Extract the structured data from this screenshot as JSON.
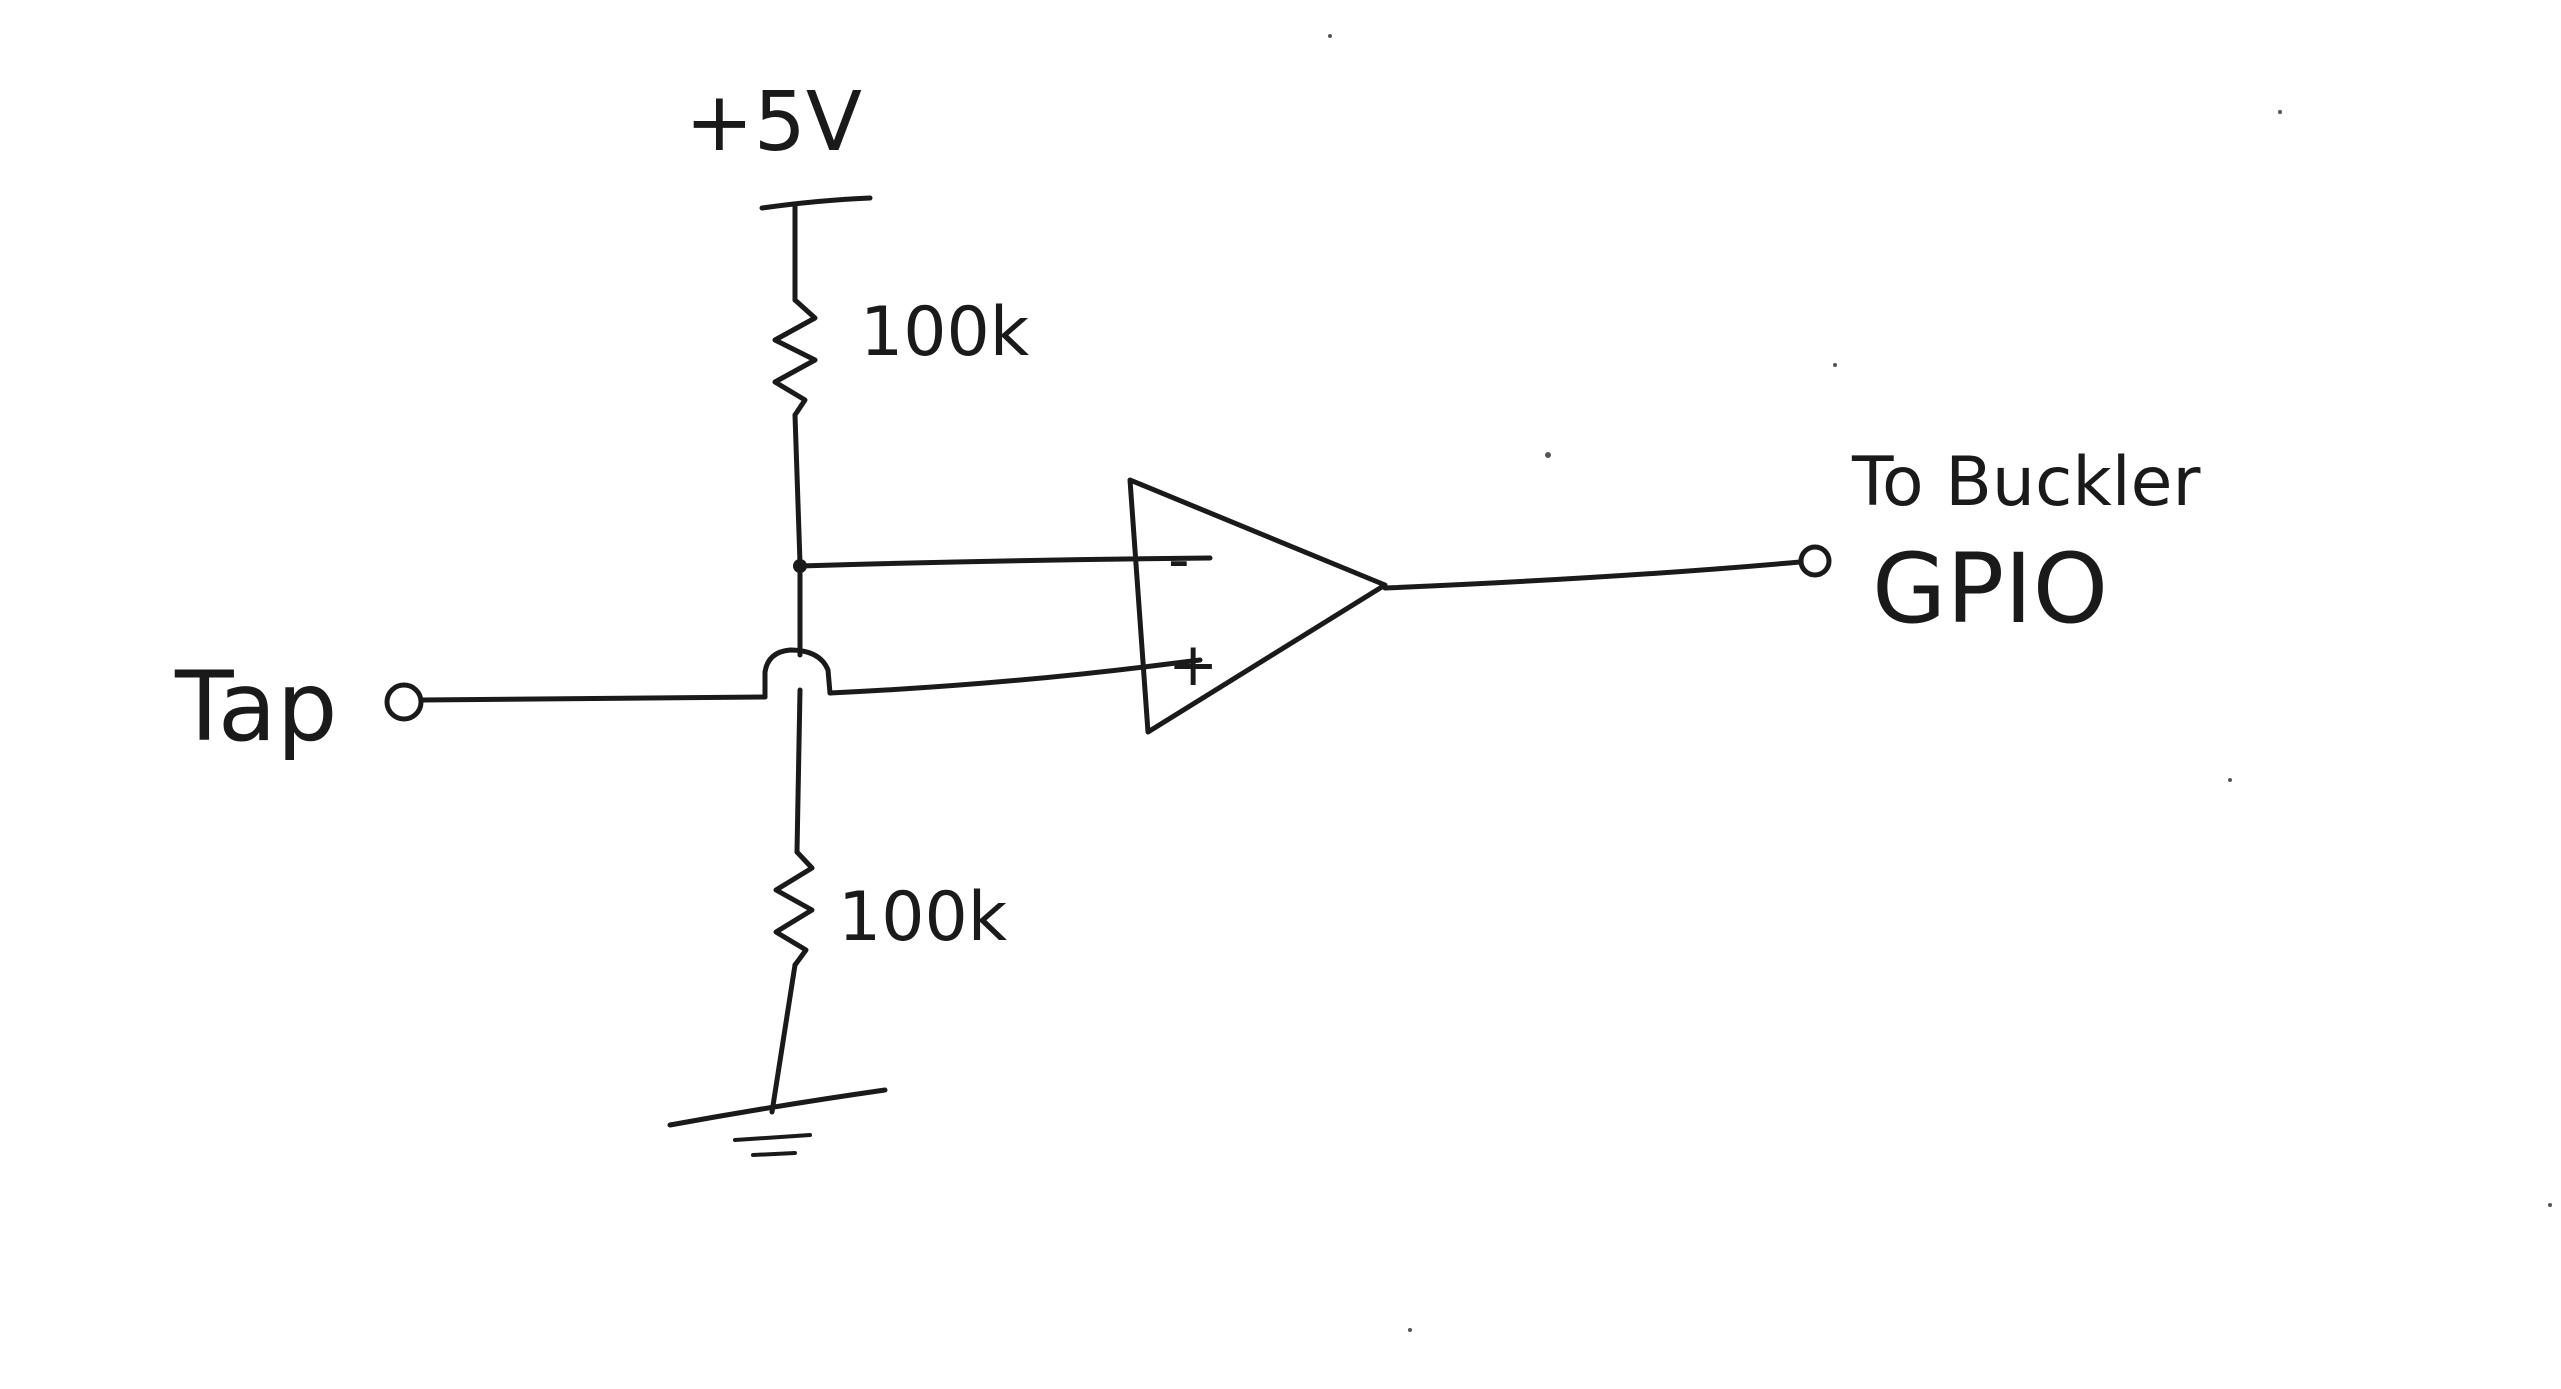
{
  "labels": {
    "supply": "+5V",
    "r_top": "100k",
    "r_bottom": "100k",
    "input": "Tap",
    "output_line1": "To Buckler",
    "output_line2": "GPIO",
    "opamp_inverting": "-",
    "opamp_noninverting": "+"
  },
  "colors": {
    "ink": "#1a1a1a",
    "paper": "#ffffff"
  }
}
